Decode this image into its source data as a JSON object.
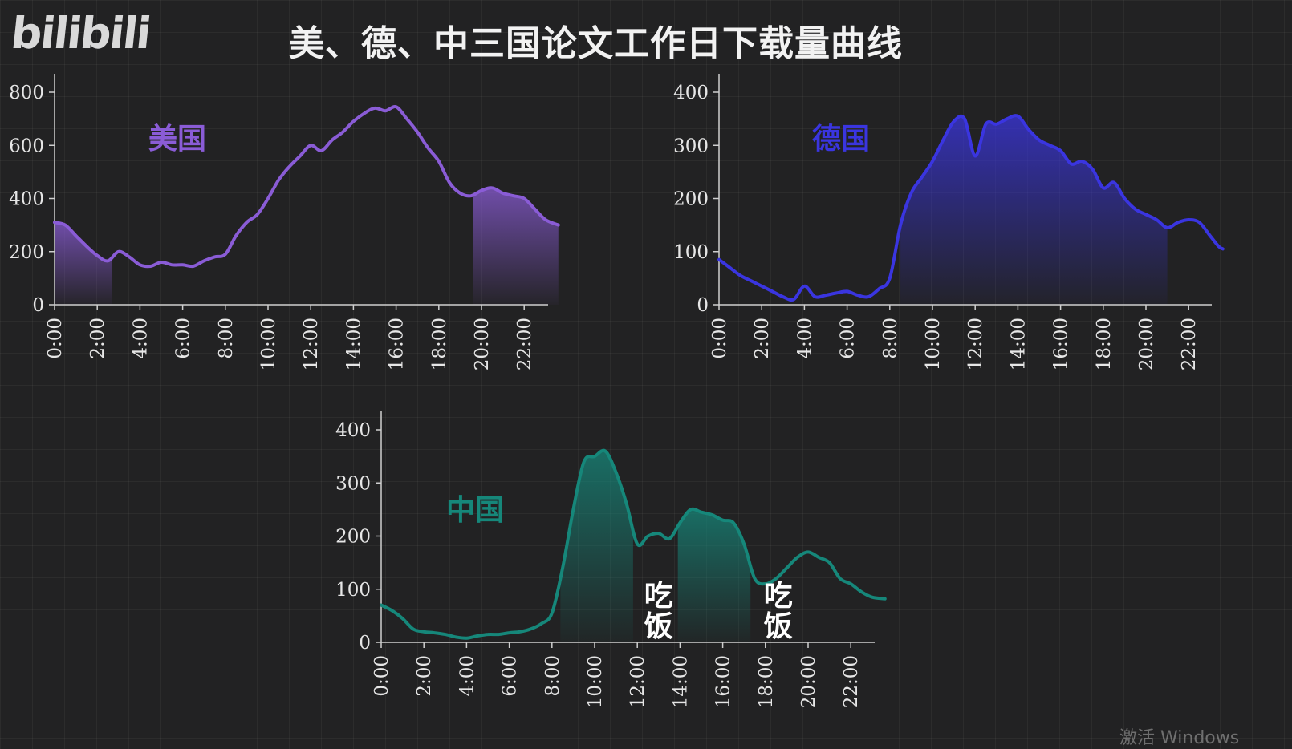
{
  "header": {
    "logo_text": "bilibili",
    "title": "美、德、中三国论文工作日下载量曲线",
    "watermark": "激活 Windows"
  },
  "chart_data": [
    {
      "type": "area",
      "label": "美国",
      "color": "#8a5cd6",
      "x_ticks": [
        "0:00",
        "2:00",
        "4:00",
        "6:00",
        "8:00",
        "10:00",
        "12:00",
        "14:00",
        "16:00",
        "18:00",
        "20:00",
        "22:00"
      ],
      "ylim": [
        0,
        800
      ],
      "y_ticks": [
        0,
        200,
        400,
        600,
        800
      ],
      "shaded_ranges": [
        [
          0,
          2.7
        ],
        [
          19.6,
          23.6
        ]
      ],
      "annotations": [],
      "points": [
        [
          0,
          310
        ],
        [
          0.5,
          300
        ],
        [
          1,
          260
        ],
        [
          1.5,
          220
        ],
        [
          2,
          185
        ],
        [
          2.5,
          165
        ],
        [
          3,
          200
        ],
        [
          3.5,
          180
        ],
        [
          4,
          150
        ],
        [
          4.5,
          145
        ],
        [
          5,
          160
        ],
        [
          5.5,
          150
        ],
        [
          6,
          150
        ],
        [
          6.5,
          145
        ],
        [
          7,
          165
        ],
        [
          7.5,
          180
        ],
        [
          8,
          190
        ],
        [
          8.5,
          260
        ],
        [
          9,
          310
        ],
        [
          9.5,
          340
        ],
        [
          10,
          400
        ],
        [
          10.5,
          470
        ],
        [
          11,
          520
        ],
        [
          11.5,
          560
        ],
        [
          12,
          600
        ],
        [
          12.5,
          580
        ],
        [
          13,
          620
        ],
        [
          13.5,
          650
        ],
        [
          14,
          690
        ],
        [
          14.5,
          720
        ],
        [
          15,
          740
        ],
        [
          15.5,
          730
        ],
        [
          16,
          745
        ],
        [
          16.5,
          700
        ],
        [
          17,
          650
        ],
        [
          17.5,
          590
        ],
        [
          18,
          540
        ],
        [
          18.5,
          460
        ],
        [
          19,
          420
        ],
        [
          19.5,
          410
        ],
        [
          20,
          430
        ],
        [
          20.5,
          440
        ],
        [
          21,
          420
        ],
        [
          21.5,
          410
        ],
        [
          22,
          400
        ],
        [
          22.5,
          360
        ],
        [
          23,
          320
        ],
        [
          23.6,
          300
        ]
      ]
    },
    {
      "type": "area",
      "label": "德国",
      "color": "#3a35e0",
      "x_ticks": [
        "0:00",
        "2:00",
        "4:00",
        "6:00",
        "8:00",
        "10:00",
        "12:00",
        "14:00",
        "16:00",
        "18:00",
        "20:00",
        "22:00"
      ],
      "ylim": [
        0,
        400
      ],
      "y_ticks": [
        0,
        100,
        200,
        300,
        400
      ],
      "shaded_ranges": [
        [
          8.5,
          21.0
        ]
      ],
      "annotations": [],
      "points": [
        [
          0,
          85
        ],
        [
          0.5,
          70
        ],
        [
          1,
          55
        ],
        [
          1.5,
          45
        ],
        [
          2,
          35
        ],
        [
          2.5,
          25
        ],
        [
          3,
          15
        ],
        [
          3.5,
          10
        ],
        [
          4,
          35
        ],
        [
          4.5,
          15
        ],
        [
          5,
          18
        ],
        [
          5.5,
          22
        ],
        [
          6,
          25
        ],
        [
          6.5,
          18
        ],
        [
          7,
          15
        ],
        [
          7.5,
          30
        ],
        [
          8,
          50
        ],
        [
          8.5,
          150
        ],
        [
          9,
          210
        ],
        [
          9.5,
          240
        ],
        [
          10,
          270
        ],
        [
          10.5,
          310
        ],
        [
          11,
          345
        ],
        [
          11.5,
          350
        ],
        [
          12,
          280
        ],
        [
          12.5,
          340
        ],
        [
          13,
          340
        ],
        [
          13.5,
          350
        ],
        [
          14,
          355
        ],
        [
          14.5,
          330
        ],
        [
          15,
          310
        ],
        [
          15.5,
          300
        ],
        [
          16,
          290
        ],
        [
          16.5,
          265
        ],
        [
          17,
          270
        ],
        [
          17.5,
          255
        ],
        [
          18,
          220
        ],
        [
          18.5,
          230
        ],
        [
          19,
          200
        ],
        [
          19.5,
          180
        ],
        [
          20,
          170
        ],
        [
          20.5,
          160
        ],
        [
          21,
          145
        ],
        [
          21.5,
          155
        ],
        [
          22,
          160
        ],
        [
          22.5,
          155
        ],
        [
          23,
          130
        ],
        [
          23.4,
          110
        ],
        [
          23.6,
          105
        ]
      ]
    },
    {
      "type": "area",
      "label": "中国",
      "color": "#16877a",
      "x_ticks": [
        "0:00",
        "2:00",
        "4:00",
        "6:00",
        "8:00",
        "10:00",
        "12:00",
        "14:00",
        "16:00",
        "18:00",
        "20:00",
        "22:00"
      ],
      "ylim": [
        0,
        400
      ],
      "y_ticks": [
        0,
        100,
        200,
        300,
        400
      ],
      "shaded_ranges": [
        [
          8.4,
          11.8
        ],
        [
          13.9,
          17.3
        ]
      ],
      "annotations": [
        {
          "text": "吃饭",
          "x": 13.0
        },
        {
          "text": "吃饭",
          "x": 18.6
        }
      ],
      "points": [
        [
          0,
          70
        ],
        [
          0.5,
          60
        ],
        [
          1,
          45
        ],
        [
          1.5,
          25
        ],
        [
          2,
          20
        ],
        [
          2.5,
          18
        ],
        [
          3,
          15
        ],
        [
          3.5,
          10
        ],
        [
          4,
          8
        ],
        [
          4.5,
          12
        ],
        [
          5,
          15
        ],
        [
          5.5,
          15
        ],
        [
          6,
          18
        ],
        [
          6.5,
          20
        ],
        [
          7,
          25
        ],
        [
          7.5,
          35
        ],
        [
          8,
          55
        ],
        [
          8.5,
          140
        ],
        [
          9,
          250
        ],
        [
          9.5,
          340
        ],
        [
          10,
          350
        ],
        [
          10.5,
          360
        ],
        [
          11,
          320
        ],
        [
          11.5,
          260
        ],
        [
          12,
          185
        ],
        [
          12.5,
          200
        ],
        [
          13,
          205
        ],
        [
          13.5,
          195
        ],
        [
          14,
          225
        ],
        [
          14.5,
          250
        ],
        [
          15,
          245
        ],
        [
          15.5,
          240
        ],
        [
          16,
          230
        ],
        [
          16.5,
          225
        ],
        [
          17,
          185
        ],
        [
          17.5,
          120
        ],
        [
          18,
          110
        ],
        [
          18.5,
          120
        ],
        [
          19,
          140
        ],
        [
          19.5,
          160
        ],
        [
          20,
          170
        ],
        [
          20.5,
          160
        ],
        [
          21,
          150
        ],
        [
          21.5,
          120
        ],
        [
          22,
          110
        ],
        [
          22.5,
          95
        ],
        [
          23,
          85
        ],
        [
          23.6,
          82
        ]
      ]
    }
  ]
}
